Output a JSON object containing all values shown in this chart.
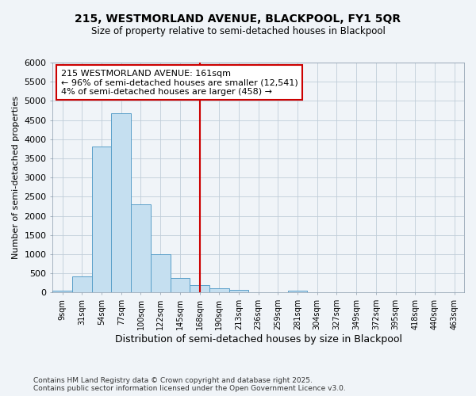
{
  "title": "215, WESTMORLAND AVENUE, BLACKPOOL, FY1 5QR",
  "subtitle": "Size of property relative to semi-detached houses in Blackpool",
  "ylabel": "Number of semi-detached properties",
  "xlabel": "Distribution of semi-detached houses by size in Blackpool",
  "footnote1": "Contains HM Land Registry data © Crown copyright and database right 2025.",
  "footnote2": "Contains public sector information licensed under the Open Government Licence v3.0.",
  "annotation_title": "215 WESTMORLAND AVENUE: 161sqm",
  "annotation_line1": "← 96% of semi-detached houses are smaller (12,541)",
  "annotation_line2": "4% of semi-detached houses are larger (458) →",
  "bar_color": "#c5dff0",
  "bar_edge_color": "#5a9fc9",
  "vline_color": "#cc0000",
  "annotation_edge_color": "#cc0000",
  "categories": [
    "9sqm",
    "31sqm",
    "54sqm",
    "77sqm",
    "100sqm",
    "122sqm",
    "145sqm",
    "168sqm",
    "190sqm",
    "213sqm",
    "236sqm",
    "259sqm",
    "281sqm",
    "304sqm",
    "327sqm",
    "349sqm",
    "372sqm",
    "395sqm",
    "418sqm",
    "440sqm",
    "463sqm"
  ],
  "values": [
    50,
    430,
    3800,
    4670,
    2300,
    1000,
    380,
    200,
    110,
    70,
    0,
    0,
    50,
    0,
    0,
    0,
    0,
    0,
    0,
    0,
    0
  ],
  "vline_index": 7,
  "ylim": [
    0,
    6000
  ],
  "yticks": [
    0,
    500,
    1000,
    1500,
    2000,
    2500,
    3000,
    3500,
    4000,
    4500,
    5000,
    5500,
    6000
  ],
  "background_color": "#f0f4f8",
  "grid_color": "#c0cdd8",
  "figsize": [
    6.0,
    5.0
  ],
  "dpi": 100
}
